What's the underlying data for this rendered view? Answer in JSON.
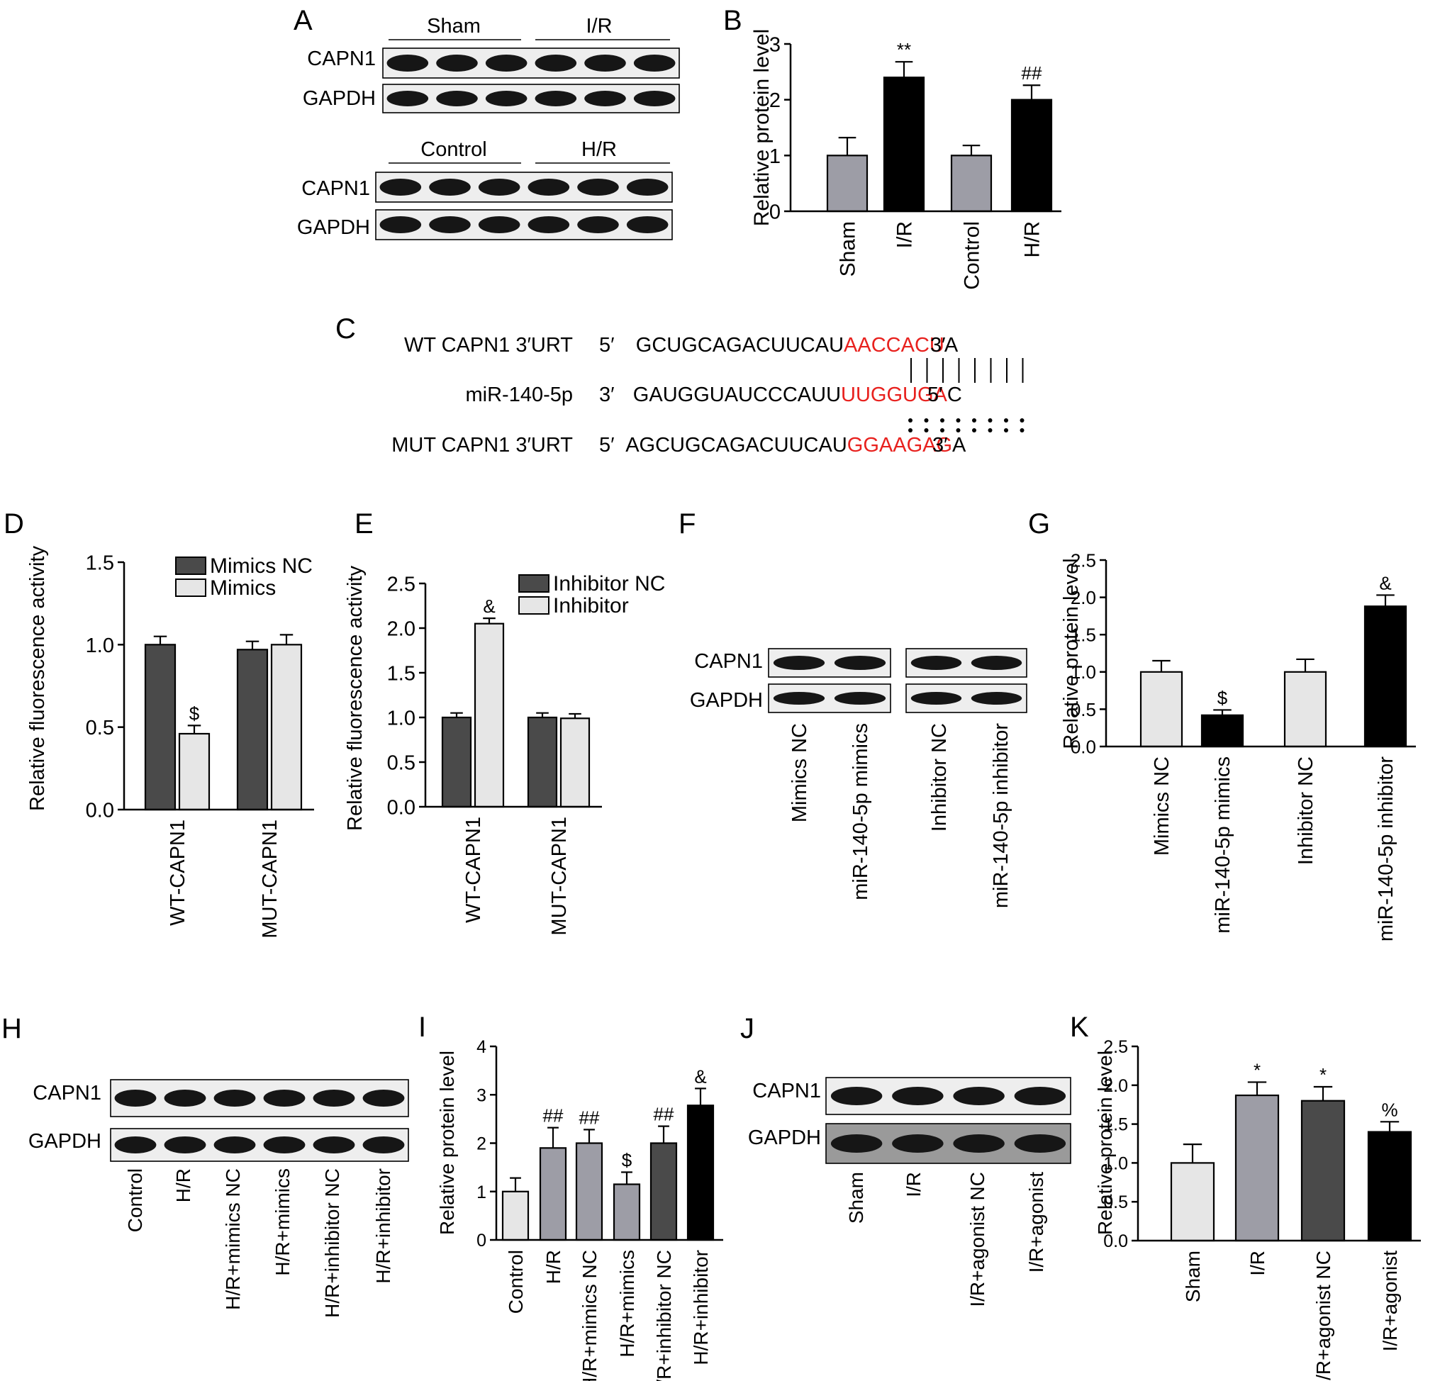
{
  "panels": {
    "A": {
      "letter": "A",
      "top_groups": [
        "Sham",
        "I/R"
      ],
      "bottom_groups": [
        "Control",
        "H/R"
      ],
      "rows": [
        "CAPN1",
        "GAPDH"
      ]
    },
    "C": {
      "letter": "C",
      "rows": [
        {
          "name": "WT CAPN1 3′URT",
          "end5": "5′",
          "pre": "GCUGCAGACUUCAU",
          "site": "AACCACU",
          "post": "A",
          "end3": "3′"
        },
        {
          "name": "miR-140-5p",
          "end5": "3′",
          "pre": "GAUGGUAUCCCAUU",
          "site": "UUGGUGA",
          "post": "C",
          "end3": "5′"
        },
        {
          "name": "MUT CAPN1 3′URT",
          "end5": "5′",
          "pre": "AGCUGCAGACUUCAU",
          "site": "GGAAGAG",
          "post": "A",
          "end3": "3′"
        }
      ],
      "site_color": "#e8211e"
    },
    "F": {
      "letter": "F",
      "rows": [
        "CAPN1",
        "GAPDH"
      ],
      "lanes": [
        "Mimics NC",
        "miR-140-5p mimics",
        "Inhibitor NC",
        "miR-140-5p inhibitor"
      ]
    },
    "H": {
      "letter": "H",
      "rows": [
        "CAPN1",
        "GAPDH"
      ],
      "lanes": [
        "Control",
        "H/R",
        "H/R+mimics NC",
        "H/R+mimics",
        "H/R+inhibitor NC",
        "H/R+inhibitor"
      ]
    },
    "J": {
      "letter": "J",
      "rows": [
        "CAPN1",
        "GAPDH"
      ],
      "lanes": [
        "Sham",
        "I/R",
        "I/R+agonist NC",
        "I/R+agonist"
      ]
    }
  },
  "chart_data": [
    {
      "panel": "B",
      "type": "bar",
      "ylabel": "Relative protein level",
      "ylim": [
        0,
        3
      ],
      "yticks": [
        "0",
        "1",
        "2",
        "3"
      ],
      "categories": [
        "Sham",
        "I/R",
        "Control",
        "H/R"
      ],
      "values": [
        1.0,
        2.4,
        1.0,
        2.0
      ],
      "errors": [
        0.32,
        0.28,
        0.18,
        0.26
      ],
      "colors": [
        "#9d9da6",
        "#000000",
        "#9d9da6",
        "#000000"
      ],
      "annotations": [
        "",
        "**",
        "",
        "##"
      ]
    },
    {
      "panel": "D",
      "type": "bar",
      "ylabel": "Relative fluorescence activity",
      "ylim": [
        0,
        1.5
      ],
      "yticks": [
        "0.0",
        "0.5",
        "1.0",
        "1.5"
      ],
      "categories": [
        "WT-CAPN1",
        "MUT-CAPN1"
      ],
      "series": [
        {
          "name": "Mimics NC",
          "values": [
            1.0,
            0.97
          ],
          "errors": [
            0.05,
            0.05
          ],
          "color": "#4a4a4a"
        },
        {
          "name": "Mimics",
          "values": [
            0.46,
            1.0
          ],
          "errors": [
            0.05,
            0.06
          ],
          "color": "#e6e6e6"
        }
      ],
      "annotations": [
        [
          "",
          "$"
        ],
        [
          "",
          ""
        ]
      ],
      "legend": "top-right"
    },
    {
      "panel": "E",
      "type": "bar",
      "ylabel": "Relative fluorescence activity",
      "ylim": [
        0,
        2.5
      ],
      "yticks": [
        "0.0",
        "0.5",
        "1.0",
        "1.5",
        "2.0",
        "2.5"
      ],
      "categories": [
        "WT-CAPN1",
        "MUT-CAPN1"
      ],
      "series": [
        {
          "name": "Inhibitor NC",
          "values": [
            1.0,
            1.0
          ],
          "errors": [
            0.05,
            0.05
          ],
          "color": "#4a4a4a"
        },
        {
          "name": "Inhibitor",
          "values": [
            2.05,
            0.99
          ],
          "errors": [
            0.06,
            0.05
          ],
          "color": "#e6e6e6"
        }
      ],
      "annotations": [
        [
          "",
          "&"
        ],
        [
          "",
          ""
        ]
      ],
      "legend": "top-right"
    },
    {
      "panel": "G",
      "type": "bar",
      "ylabel": "Relative protein level",
      "ylim": [
        0,
        2.5
      ],
      "yticks": [
        "0.0",
        "0.5",
        "1.0",
        "1.5",
        "2.0",
        "2.5"
      ],
      "categories": [
        "Mimics NC",
        "miR-140-5p mimics",
        "Inhibitor NC",
        "miR-140-5p inhibitor"
      ],
      "values": [
        1.0,
        0.42,
        1.0,
        1.88
      ],
      "errors": [
        0.15,
        0.07,
        0.17,
        0.15
      ],
      "colors": [
        "#e6e6e6",
        "#000000",
        "#e6e6e6",
        "#000000"
      ],
      "annotations": [
        "",
        "$",
        "",
        "&"
      ]
    },
    {
      "panel": "I",
      "type": "bar",
      "ylabel": "Relative protein level",
      "ylim": [
        0,
        4
      ],
      "yticks": [
        "0",
        "1",
        "2",
        "3",
        "4"
      ],
      "categories": [
        "Control",
        "H/R",
        "H/R+mimics NC",
        "H/R+mimics",
        "H/R+inhibitor NC",
        "H/R+inhibitor"
      ],
      "values": [
        1.0,
        1.9,
        2.0,
        1.15,
        2.0,
        2.78
      ],
      "errors": [
        0.28,
        0.42,
        0.28,
        0.25,
        0.35,
        0.35
      ],
      "colors": [
        "#e6e6e6",
        "#9d9da6",
        "#9d9da6",
        "#9d9da6",
        "#4a4a4a",
        "#000000"
      ],
      "annotations": [
        "",
        "##",
        "##",
        "$",
        "##",
        "&"
      ]
    },
    {
      "panel": "K",
      "type": "bar",
      "ylabel": "Relative protein level",
      "ylim": [
        0,
        2.5
      ],
      "yticks": [
        "0.0",
        "0.5",
        "1.0",
        "1.5",
        "2.0",
        "2.5"
      ],
      "categories": [
        "Sham",
        "I/R",
        "I/R+agonist NC",
        "I/R+agonist"
      ],
      "values": [
        1.0,
        1.87,
        1.8,
        1.4
      ],
      "errors": [
        0.24,
        0.17,
        0.18,
        0.13
      ],
      "colors": [
        "#e6e6e6",
        "#9d9da6",
        "#4a4a4a",
        "#000000"
      ],
      "annotations": [
        "",
        "*",
        "*",
        "%"
      ]
    }
  ]
}
